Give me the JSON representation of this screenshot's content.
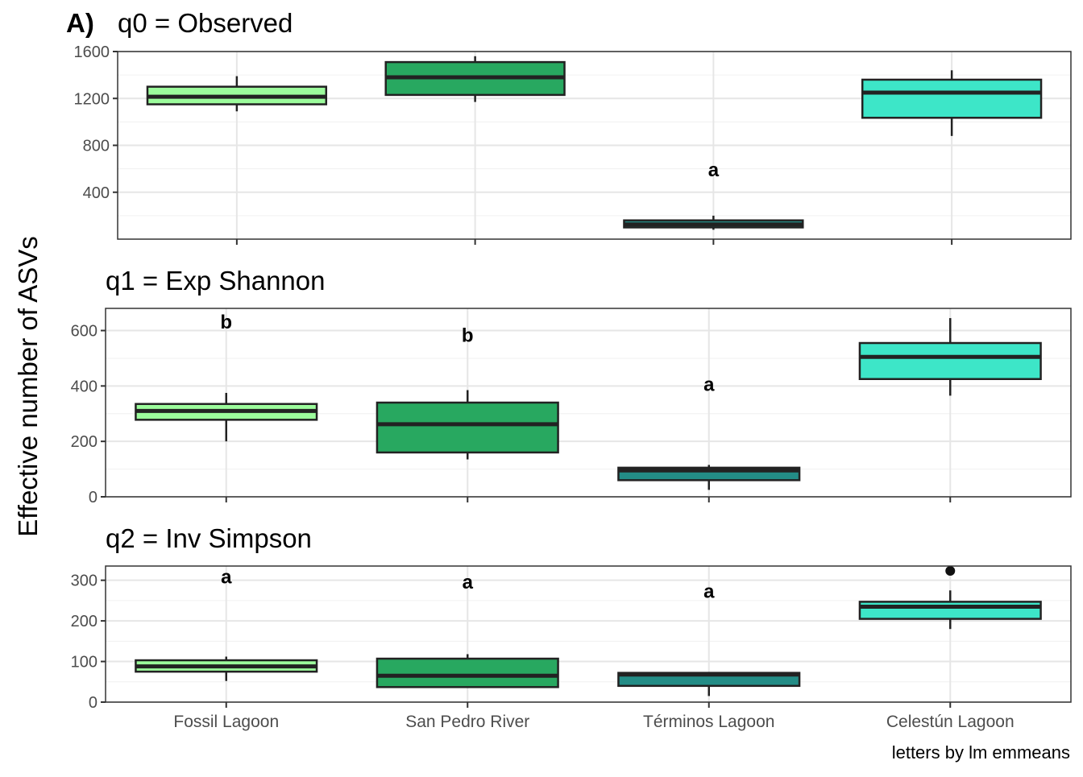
{
  "figure": {
    "tag": "A)",
    "y_axis_label": "Effective number of ASVs",
    "caption": "letters by lm emmeans",
    "categories": [
      "Fossil Lagoon",
      "San Pedro River",
      "Términos Lagoon",
      "Celestún Lagoon"
    ],
    "colors": {
      "Fossil Lagoon": "#9cfc9c",
      "San Pedro River": "#28a860",
      "Términos Lagoon": "#238c86",
      "Celestún Lagoon": "#3de6c8",
      "box_outline": "#222222",
      "grid": "#e6e6e6",
      "panel_border": "#333333"
    }
  },
  "chart_data": [
    {
      "type": "box",
      "title": "q0 = Observed",
      "ylim": [
        0,
        1600
      ],
      "yticks": [
        400,
        800,
        1200,
        1600
      ],
      "grid": true,
      "boxes": [
        {
          "category": "Fossil Lagoon",
          "whisker_low": 1090,
          "q1": 1150,
          "median": 1215,
          "q3": 1300,
          "whisker_high": 1390,
          "outliers": []
        },
        {
          "category": "San Pedro River",
          "whisker_low": 1170,
          "q1": 1230,
          "median": 1380,
          "q3": 1510,
          "whisker_high": 1560,
          "outliers": []
        },
        {
          "category": "Términos Lagoon",
          "whisker_low": 80,
          "q1": 100,
          "median": 125,
          "q3": 160,
          "whisker_high": 200,
          "outliers": []
        },
        {
          "category": "Celestún Lagoon",
          "whisker_low": 880,
          "q1": 1035,
          "median": 1250,
          "q3": 1360,
          "whisker_high": 1440,
          "outliers": []
        }
      ],
      "letters": [
        {
          "category": "Términos Lagoon",
          "text": "a",
          "y": 590
        }
      ]
    },
    {
      "type": "box",
      "title": "q1 = Exp Shannon",
      "ylim": [
        0,
        680
      ],
      "yticks": [
        0,
        200,
        400,
        600
      ],
      "grid": true,
      "boxes": [
        {
          "category": "Fossil Lagoon",
          "whisker_low": 200,
          "q1": 278,
          "median": 310,
          "q3": 335,
          "whisker_high": 375,
          "outliers": []
        },
        {
          "category": "San Pedro River",
          "whisker_low": 135,
          "q1": 160,
          "median": 262,
          "q3": 340,
          "whisker_high": 385,
          "outliers": []
        },
        {
          "category": "Términos Lagoon",
          "whisker_low": 25,
          "q1": 60,
          "median": 95,
          "q3": 105,
          "whisker_high": 115,
          "outliers": []
        },
        {
          "category": "Celestún Lagoon",
          "whisker_low": 365,
          "q1": 425,
          "median": 505,
          "q3": 555,
          "whisker_high": 645,
          "outliers": []
        }
      ],
      "letters": [
        {
          "category": "Fossil Lagoon",
          "text": "b",
          "y": 630
        },
        {
          "category": "San Pedro River",
          "text": "b",
          "y": 583
        },
        {
          "category": "Términos Lagoon",
          "text": "a",
          "y": 405
        }
      ]
    },
    {
      "type": "box",
      "title": "q2 = Inv Simpson",
      "ylim": [
        0,
        335
      ],
      "yticks": [
        0,
        100,
        200,
        300
      ],
      "grid": true,
      "boxes": [
        {
          "category": "Fossil Lagoon",
          "whisker_low": 52,
          "q1": 75,
          "median": 88,
          "q3": 103,
          "whisker_high": 112,
          "outliers": []
        },
        {
          "category": "San Pedro River",
          "whisker_low": 35,
          "q1": 37,
          "median": 65,
          "q3": 107,
          "whisker_high": 118,
          "outliers": []
        },
        {
          "category": "Términos Lagoon",
          "whisker_low": 15,
          "q1": 40,
          "median": 68,
          "q3": 72,
          "whisker_high": 72,
          "outliers": []
        },
        {
          "category": "Celestún Lagoon",
          "whisker_low": 180,
          "q1": 205,
          "median": 235,
          "q3": 247,
          "whisker_high": 275,
          "outliers": [
            323
          ]
        }
      ],
      "letters": [
        {
          "category": "Fossil Lagoon",
          "text": "a",
          "y": 308
        },
        {
          "category": "San Pedro River",
          "text": "a",
          "y": 295
        },
        {
          "category": "Términos Lagoon",
          "text": "a",
          "y": 273
        }
      ]
    }
  ]
}
